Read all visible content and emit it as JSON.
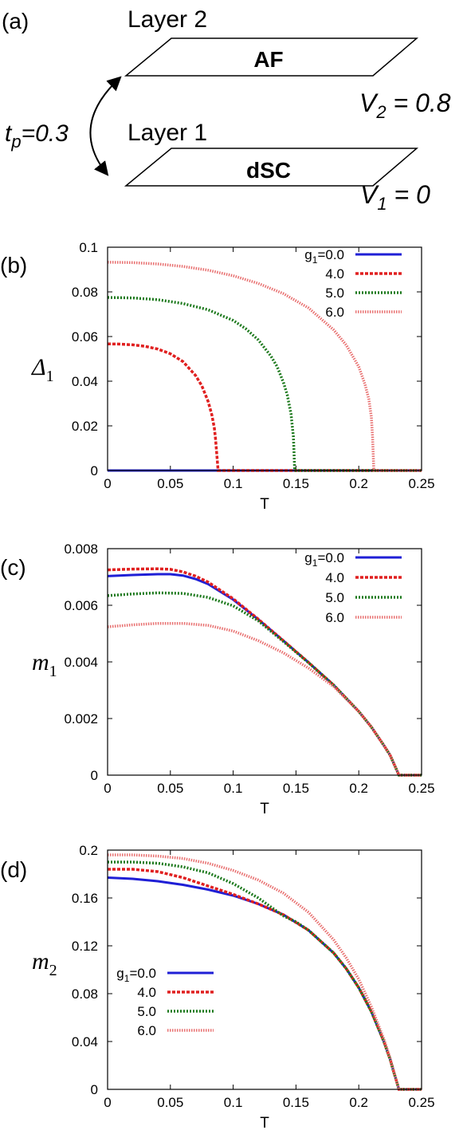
{
  "panel_a": {
    "label": "(a)",
    "layer2": {
      "title": "Layer 2",
      "order": "AF",
      "potential_label": "V",
      "potential_sub": "2",
      "potential_value": " = 0.8"
    },
    "layer1": {
      "title": "Layer 1",
      "order": "dSC",
      "potential_label": "V",
      "potential_sub": "1",
      "potential_value": " = 0"
    },
    "hopping": {
      "label": "t",
      "sub": "p",
      "value": "=0.3"
    }
  },
  "chart_data": [
    {
      "panel_label": "(b)",
      "type": "line",
      "xlabel": "T",
      "ylabel": "Δ",
      "ylabel_sub": "1",
      "xlim": [
        0,
        0.25
      ],
      "ylim": [
        0,
        0.1
      ],
      "xticks": [
        "0",
        "0.05",
        "0.1",
        "0.15",
        "0.2",
        "0.25"
      ],
      "yticks": [
        "0",
        "0.02",
        "0.04",
        "0.06",
        "0.08",
        "0.1"
      ],
      "legend_position": "top-right",
      "series": [
        {
          "name": "g1=0.0",
          "legend_prefix": "g",
          "legend_sub": "1",
          "legend_suffix": "=0.0",
          "color": "#1f1fd6",
          "style": "solid",
          "x": [
            0,
            0.25
          ],
          "y": [
            0,
            0
          ]
        },
        {
          "name": "4.0",
          "color": "#e02020",
          "style": "dashed",
          "x": [
            0,
            0.01,
            0.02,
            0.03,
            0.04,
            0.05,
            0.06,
            0.07,
            0.075,
            0.08,
            0.083,
            0.085,
            0.086,
            0.087,
            0.088,
            0.25
          ],
          "y": [
            0.0567,
            0.0566,
            0.0563,
            0.0556,
            0.0544,
            0.0523,
            0.0488,
            0.0426,
            0.038,
            0.031,
            0.025,
            0.019,
            0.014,
            0.007,
            0,
            0
          ]
        },
        {
          "name": "5.0",
          "color": "#1e7a1e",
          "style": "dotted",
          "x": [
            0,
            0.02,
            0.04,
            0.06,
            0.08,
            0.1,
            0.11,
            0.12,
            0.13,
            0.135,
            0.14,
            0.143,
            0.146,
            0.148,
            0.149,
            0.25
          ],
          "y": [
            0.0775,
            0.0773,
            0.0765,
            0.0748,
            0.072,
            0.0672,
            0.0635,
            0.0585,
            0.0513,
            0.0465,
            0.0395,
            0.034,
            0.0255,
            0.015,
            0,
            0
          ]
        },
        {
          "name": "6.0",
          "color": "#e87070",
          "style": "fine",
          "x": [
            0,
            0.02,
            0.04,
            0.06,
            0.08,
            0.1,
            0.12,
            0.14,
            0.16,
            0.18,
            0.19,
            0.2,
            0.205,
            0.208,
            0.21,
            0.211,
            0.212,
            0.25
          ],
          "y": [
            0.0933,
            0.0931,
            0.0925,
            0.0914,
            0.0897,
            0.0872,
            0.0838,
            0.0792,
            0.0728,
            0.063,
            0.0562,
            0.0465,
            0.0385,
            0.032,
            0.024,
            0.015,
            0,
            0
          ]
        }
      ]
    },
    {
      "panel_label": "(c)",
      "type": "line",
      "xlabel": "T",
      "ylabel": "m",
      "ylabel_sub": "1",
      "xlim": [
        0,
        0.25
      ],
      "ylim": [
        0,
        0.008
      ],
      "xticks": [
        "0",
        "0.05",
        "0.1",
        "0.15",
        "0.2",
        "0.25"
      ],
      "yticks": [
        "0",
        "0.002",
        "0.004",
        "0.006",
        "0.008"
      ],
      "legend_position": "top-right",
      "series": [
        {
          "name": "g1=0.0",
          "legend_prefix": "g",
          "legend_sub": "1",
          "legend_suffix": "=0.0",
          "color": "#1f1fd6",
          "style": "solid",
          "x": [
            0,
            0.02,
            0.04,
            0.05,
            0.06,
            0.07,
            0.08,
            0.1,
            0.12,
            0.14,
            0.16,
            0.18,
            0.2,
            0.21,
            0.22,
            0.225,
            0.23,
            0.232,
            0.25
          ],
          "y": [
            0.00703,
            0.00707,
            0.0071,
            0.0071,
            0.00705,
            0.00693,
            0.00675,
            0.0062,
            0.0055,
            0.00475,
            0.00398,
            0.00318,
            0.00225,
            0.0017,
            0.00105,
            0.0007,
            0.0002,
            0,
            0
          ]
        },
        {
          "name": "4.0",
          "color": "#e02020",
          "style": "dashed",
          "x": [
            0,
            0.02,
            0.04,
            0.05,
            0.06,
            0.07,
            0.08,
            0.1,
            0.12,
            0.14,
            0.16,
            0.18,
            0.2,
            0.21,
            0.22,
            0.225,
            0.23,
            0.232,
            0.25
          ],
          "y": [
            0.00725,
            0.00728,
            0.00729,
            0.00727,
            0.00718,
            0.00703,
            0.00682,
            0.00623,
            0.00551,
            0.00475,
            0.00398,
            0.00318,
            0.00225,
            0.0017,
            0.00105,
            0.0007,
            0.0002,
            0,
            0
          ]
        },
        {
          "name": "5.0",
          "color": "#1e7a1e",
          "style": "dotted",
          "x": [
            0,
            0.02,
            0.04,
            0.06,
            0.08,
            0.1,
            0.12,
            0.14,
            0.16,
            0.18,
            0.2,
            0.21,
            0.22,
            0.225,
            0.23,
            0.232,
            0.25
          ],
          "y": [
            0.00634,
            0.0064,
            0.00644,
            0.00642,
            0.00628,
            0.00598,
            0.00545,
            0.00472,
            0.00397,
            0.00318,
            0.00225,
            0.0017,
            0.00105,
            0.0007,
            0.0002,
            0,
            0
          ]
        },
        {
          "name": "6.0",
          "color": "#e87070",
          "style": "fine",
          "x": [
            0,
            0.02,
            0.04,
            0.06,
            0.08,
            0.1,
            0.12,
            0.14,
            0.16,
            0.18,
            0.2,
            0.21,
            0.22,
            0.225,
            0.23,
            0.232,
            0.25
          ],
          "y": [
            0.00524,
            0.00531,
            0.00536,
            0.00536,
            0.00529,
            0.00509,
            0.00475,
            0.00432,
            0.00378,
            0.00313,
            0.00225,
            0.0017,
            0.00105,
            0.0007,
            0.0002,
            0,
            0
          ]
        }
      ]
    },
    {
      "panel_label": "(d)",
      "type": "line",
      "xlabel": "T",
      "ylabel": "m",
      "ylabel_sub": "2",
      "xlim": [
        0,
        0.25
      ],
      "ylim": [
        0,
        0.2
      ],
      "xticks": [
        "0",
        "0.05",
        "0.1",
        "0.15",
        "0.2",
        "0.25"
      ],
      "yticks": [
        "0",
        "0.04",
        "0.08",
        "0.12",
        "0.16",
        "0.2"
      ],
      "legend_position": "bottom-left",
      "series": [
        {
          "name": "g1=0.0",
          "legend_prefix": "g",
          "legend_sub": "1",
          "legend_suffix": "=0.0",
          "color": "#1f1fd6",
          "style": "solid",
          "x": [
            0,
            0.02,
            0.04,
            0.06,
            0.08,
            0.1,
            0.12,
            0.14,
            0.16,
            0.18,
            0.19,
            0.2,
            0.21,
            0.22,
            0.225,
            0.228,
            0.23,
            0.232,
            0.25
          ],
          "y": [
            0.177,
            0.176,
            0.174,
            0.171,
            0.167,
            0.162,
            0.155,
            0.146,
            0.133,
            0.114,
            0.101,
            0.085,
            0.065,
            0.04,
            0.025,
            0.014,
            0.007,
            0,
            0
          ]
        },
        {
          "name": "4.0",
          "color": "#e02020",
          "style": "dashed",
          "x": [
            0,
            0.02,
            0.04,
            0.06,
            0.08,
            0.1,
            0.12,
            0.14,
            0.16,
            0.18,
            0.19,
            0.2,
            0.21,
            0.22,
            0.225,
            0.228,
            0.23,
            0.232,
            0.25
          ],
          "y": [
            0.184,
            0.184,
            0.182,
            0.177,
            0.17,
            0.163,
            0.155,
            0.146,
            0.133,
            0.114,
            0.101,
            0.085,
            0.065,
            0.04,
            0.025,
            0.014,
            0.007,
            0,
            0
          ]
        },
        {
          "name": "5.0",
          "color": "#1e7a1e",
          "style": "dotted",
          "x": [
            0,
            0.02,
            0.04,
            0.06,
            0.08,
            0.1,
            0.12,
            0.14,
            0.15,
            0.16,
            0.18,
            0.19,
            0.2,
            0.21,
            0.22,
            0.225,
            0.228,
            0.23,
            0.232,
            0.25
          ],
          "y": [
            0.19,
            0.19,
            0.189,
            0.186,
            0.181,
            0.172,
            0.16,
            0.145,
            0.14,
            0.133,
            0.114,
            0.101,
            0.085,
            0.065,
            0.04,
            0.025,
            0.014,
            0.007,
            0,
            0
          ]
        },
        {
          "name": "6.0",
          "color": "#e87070",
          "style": "fine",
          "x": [
            0,
            0.02,
            0.04,
            0.06,
            0.08,
            0.1,
            0.12,
            0.14,
            0.16,
            0.18,
            0.19,
            0.2,
            0.21,
            0.22,
            0.225,
            0.228,
            0.23,
            0.232,
            0.25
          ],
          "y": [
            0.196,
            0.196,
            0.195,
            0.193,
            0.189,
            0.183,
            0.175,
            0.164,
            0.148,
            0.125,
            0.11,
            0.092,
            0.069,
            0.042,
            0.026,
            0.015,
            0.007,
            0,
            0
          ]
        }
      ]
    }
  ]
}
